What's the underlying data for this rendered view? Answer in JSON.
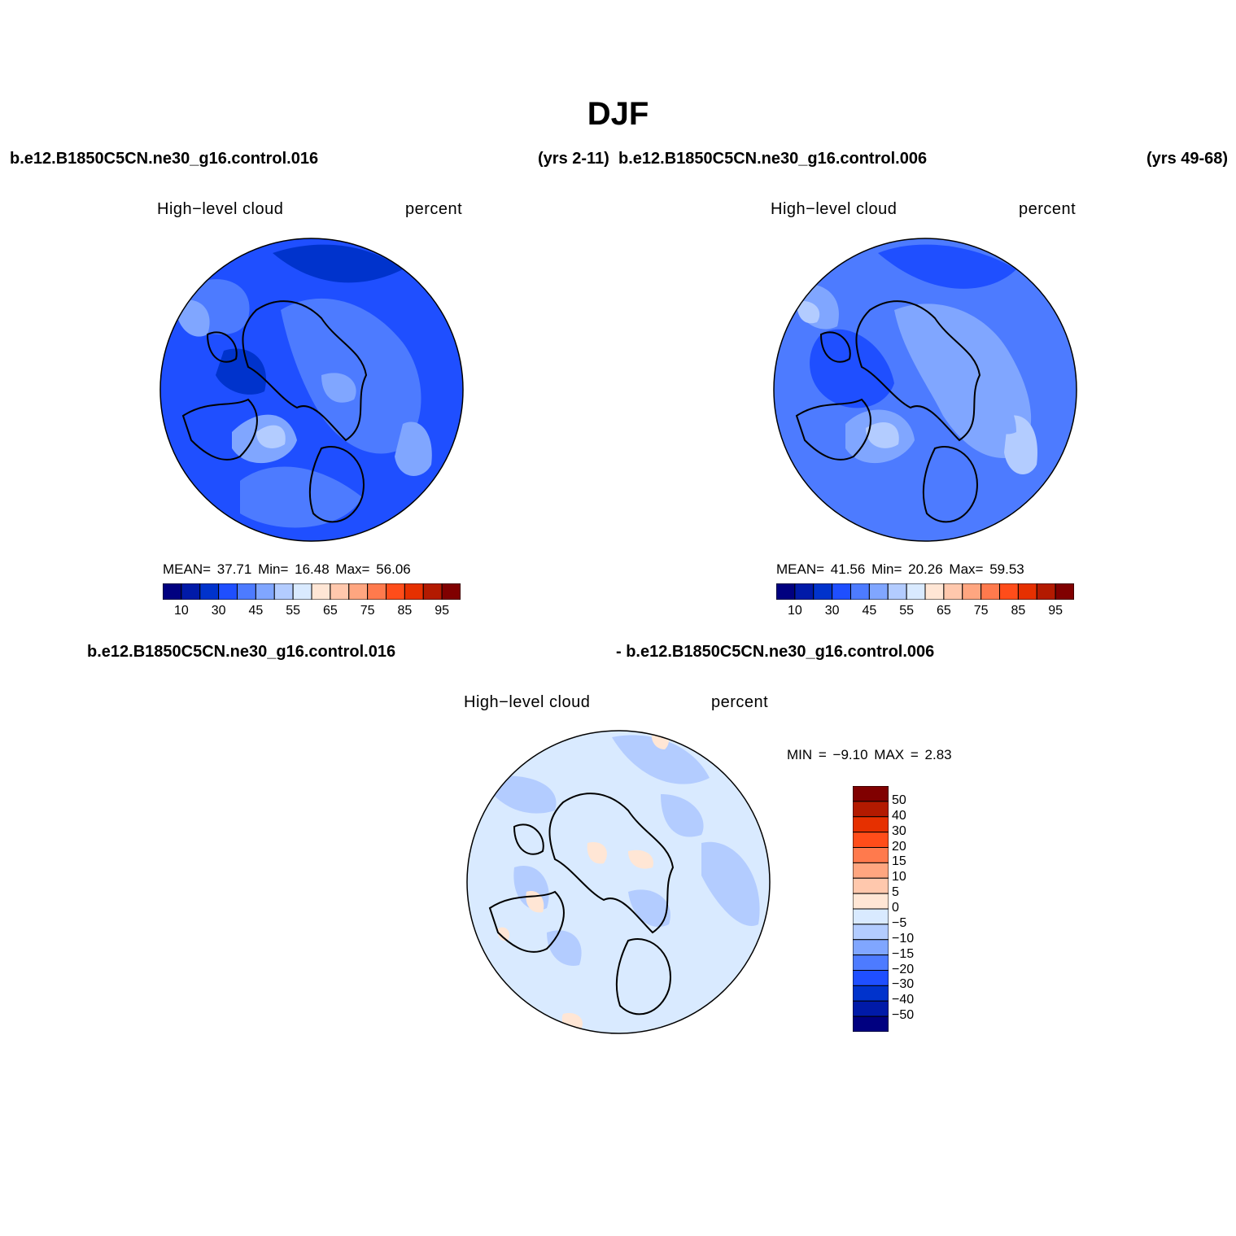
{
  "title": "DJF",
  "header": {
    "case1": "b.e12.B1850C5CN.ne30_g16.control.016",
    "years1": "(yrs 2-11)",
    "case2": "b.e12.B1850C5CN.ne30_g16.control.006",
    "years2": "(yrs 49-68)"
  },
  "panels": [
    {
      "variable": "High−level cloud",
      "units": "percent",
      "stats": {
        "mean_label": "MEAN=",
        "mean": "37.71",
        "min_label": "Min=",
        "min": "16.48",
        "max_label": "Max=",
        "max": "56.06"
      }
    },
    {
      "variable": "High−level cloud",
      "units": "percent",
      "stats": {
        "mean_label": "MEAN=",
        "mean": "41.56",
        "min_label": "Min=",
        "min": "20.26",
        "max_label": "Max=",
        "max": "59.53"
      }
    }
  ],
  "diff_header": {
    "left": "b.e12.B1850C5CN.ne30_g16.control.016",
    "right": "- b.e12.B1850C5CN.ne30_g16.control.006"
  },
  "diff_panel": {
    "variable": "High−level cloud",
    "units": "percent",
    "min_label": "MIN =",
    "min": "−9.10",
    "max_label": "MAX =",
    "max": "2.83"
  },
  "colorbar_abs": {
    "colors": [
      "#000080",
      "#001aa8",
      "#0033cc",
      "#1f4fff",
      "#4d7bff",
      "#80a6ff",
      "#b3ccff",
      "#d9eaff",
      "#ffe6d5",
      "#ffc8ad",
      "#ffa680",
      "#ff7a4d",
      "#ff4d1a",
      "#e63000",
      "#b31a00",
      "#800000"
    ],
    "labels": [
      "10",
      "30",
      "45",
      "55",
      "65",
      "75",
      "85",
      "95"
    ]
  },
  "colorbar_diff": {
    "colors": [
      "#800000",
      "#b31a00",
      "#e63000",
      "#ff4d1a",
      "#ff7a4d",
      "#ffa680",
      "#ffc8ad",
      "#ffe6d5",
      "#d9eaff",
      "#b3ccff",
      "#80a6ff",
      "#4d7bff",
      "#1f4fff",
      "#0033cc",
      "#001aa8",
      "#000080"
    ],
    "labels": [
      "50",
      "40",
      "30",
      "20",
      "15",
      "10",
      "5",
      "0",
      "−5",
      "−10",
      "−15",
      "−20",
      "−30",
      "−40",
      "−50"
    ]
  }
}
